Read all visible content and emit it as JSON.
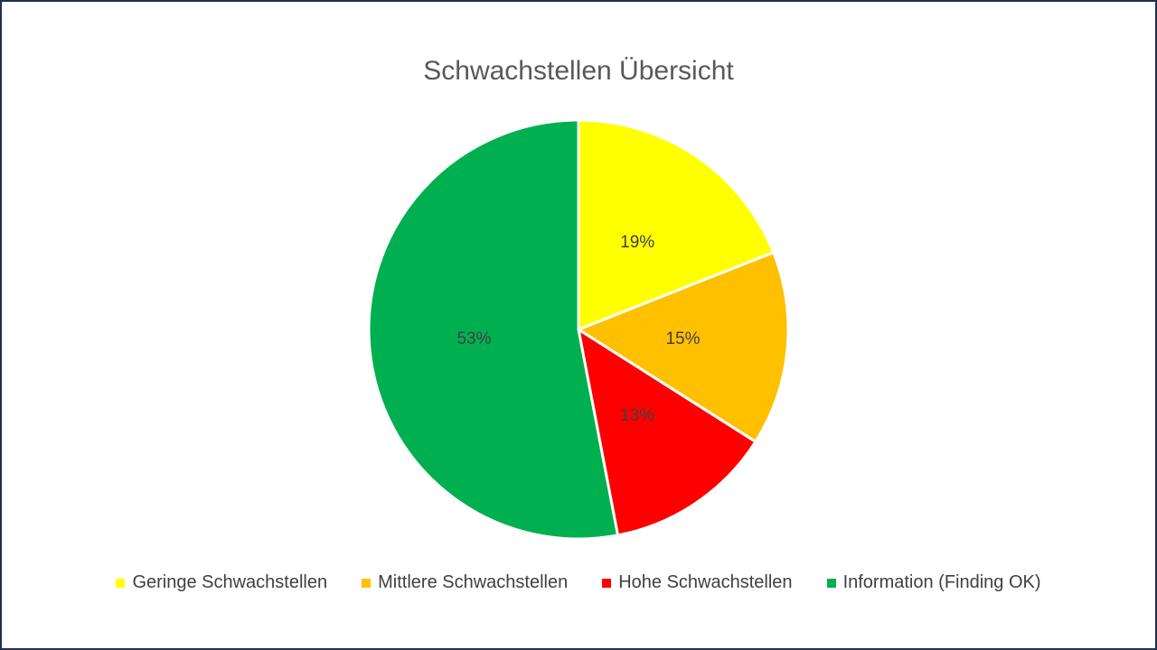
{
  "chart_data": {
    "type": "pie",
    "title": "Schwachstellen Übersicht",
    "categories": [
      "Geringe Schwachstellen",
      "Mittlere Schwachstellen",
      "Hohe Schwachstellen",
      "Information (Finding OK)"
    ],
    "values": [
      19,
      15,
      13,
      53
    ],
    "value_labels": [
      "19%",
      "15%",
      "13%",
      "53%"
    ],
    "colors": [
      "#ffff00",
      "#ffc000",
      "#ff0000",
      "#00b050"
    ],
    "legend": "bottom"
  }
}
